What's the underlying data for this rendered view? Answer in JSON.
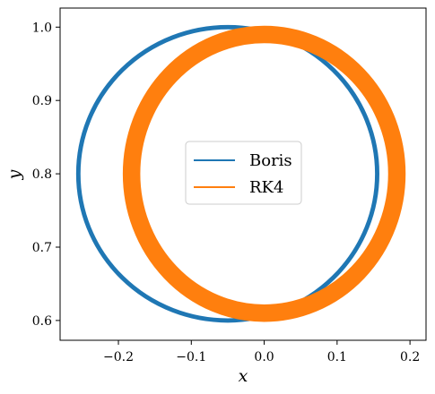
{
  "chart_data": {
    "type": "line",
    "title": "",
    "xlabel": "x",
    "ylabel": "y",
    "xlim": [
      -0.28,
      0.222
    ],
    "ylim": [
      0.573,
      1.026
    ],
    "x_ticks": [
      -0.2,
      -0.1,
      0.0,
      0.1,
      0.2
    ],
    "x_tick_labels": [
      "−0.2",
      "−0.1",
      "0.0",
      "0.1",
      "0.2"
    ],
    "y_ticks": [
      0.6,
      0.7,
      0.8,
      0.9,
      1.0
    ],
    "y_tick_labels": [
      "0.6",
      "0.7",
      "0.8",
      "0.9",
      "1.0"
    ],
    "grid": false,
    "legend": {
      "position": "center"
    },
    "series": [
      {
        "name": "Boris",
        "color": "#1f77b4",
        "shape": "circle-orbit",
        "center": [
          -0.05,
          0.8
        ],
        "radius_x": 0.205,
        "radius_y": 0.2,
        "band_width": 0.006
      },
      {
        "name": "RK4",
        "color": "#ff7f0e",
        "shape": "circle-orbit",
        "center": [
          0.0,
          0.8
        ],
        "radius_x": 0.182,
        "radius_y": 0.19,
        "band_width": 0.024
      }
    ]
  }
}
